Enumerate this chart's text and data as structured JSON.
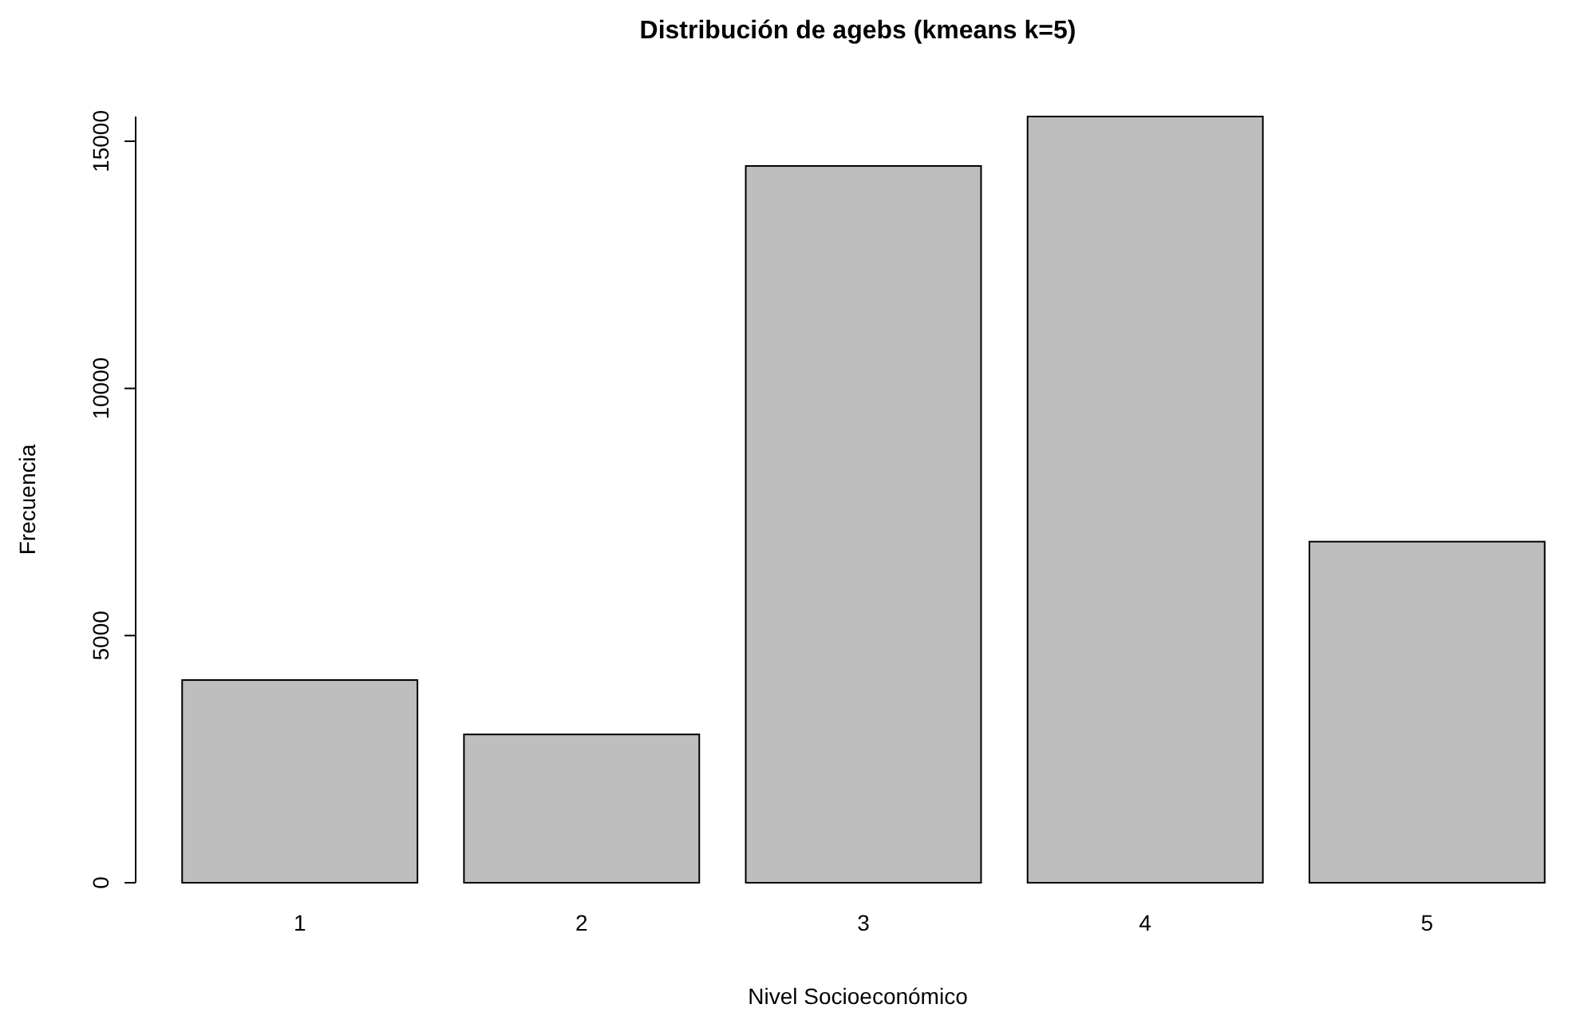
{
  "chart_data": {
    "type": "bar",
    "title": "Distribución de agebs (kmeans k=5)",
    "xlabel": "Nivel Socioeconómico",
    "ylabel": "Frecuencia",
    "categories": [
      "1",
      "2",
      "3",
      "4",
      "5"
    ],
    "values": [
      4100,
      3000,
      14500,
      15500,
      6900
    ],
    "color": "#bebebe",
    "ylim": [
      0,
      15500
    ],
    "yticks": [
      0,
      5000,
      10000,
      15000
    ],
    "grid": false
  }
}
